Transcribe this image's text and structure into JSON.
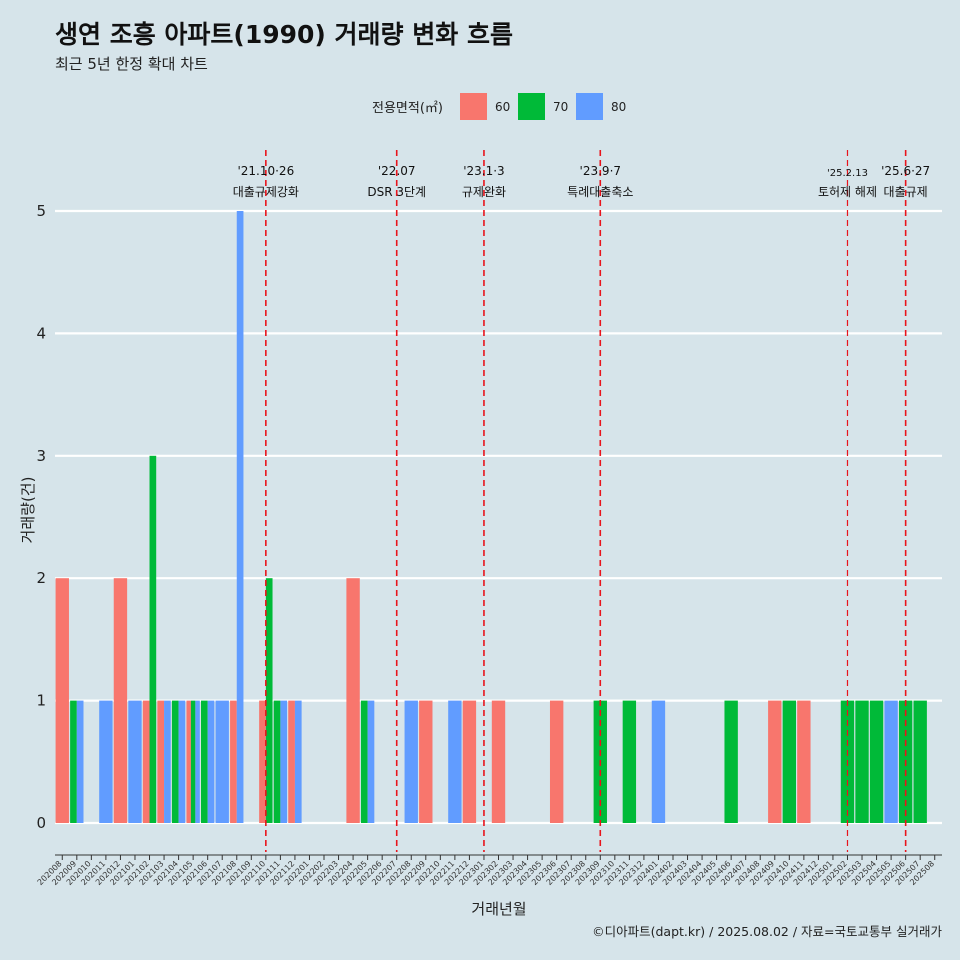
{
  "chart_data": {
    "type": "bar",
    "title": "생연 조흥 아파트(1990) 거래량 변화 흐름",
    "subtitle": "최근 5년 한정 확대 차트",
    "xlabel": "거래년월",
    "ylabel": "거래량(건)",
    "ylim": [
      0,
      5
    ],
    "yticks": [
      0,
      1,
      2,
      3,
      4,
      5
    ],
    "caption": "©디아파트(dapt.kr) / 2025.08.02 / 자료=국토교통부 실거래가",
    "legend": {
      "title": "전용면적(㎡)",
      "position": "top",
      "entries": [
        {
          "name": "60",
          "color": "#f8766d"
        },
        {
          "name": "70",
          "color": "#00ba38"
        },
        {
          "name": "80",
          "color": "#619cff"
        }
      ]
    },
    "categories": [
      "202008",
      "202009",
      "202010",
      "202011",
      "202012",
      "202101",
      "202102",
      "202103",
      "202104",
      "202105",
      "202106",
      "202107",
      "202108",
      "202109",
      "202110",
      "202111",
      "202112",
      "202201",
      "202202",
      "202203",
      "202204",
      "202205",
      "202206",
      "202207",
      "202208",
      "202209",
      "202210",
      "202211",
      "202212",
      "202301",
      "202302",
      "202303",
      "202304",
      "202305",
      "202306",
      "202307",
      "202308",
      "202309",
      "202310",
      "202311",
      "202312",
      "202401",
      "202402",
      "202403",
      "202404",
      "202405",
      "202406",
      "202407",
      "202408",
      "202409",
      "202410",
      "202411",
      "202412",
      "202501",
      "202502",
      "202503",
      "202504",
      "202505",
      "202506",
      "202507",
      "202508"
    ],
    "series": [
      {
        "name": "60",
        "values": [
          2,
          0,
          0,
          0,
          2,
          0,
          1,
          1,
          0,
          1,
          0,
          0,
          1,
          0,
          1,
          0,
          1,
          0,
          0,
          0,
          2,
          0,
          0,
          0,
          0,
          1,
          0,
          0,
          1,
          0,
          1,
          0,
          0,
          0,
          1,
          0,
          0,
          0,
          0,
          0,
          0,
          0,
          0,
          0,
          0,
          0,
          0,
          0,
          0,
          1,
          0,
          1,
          0,
          0,
          0,
          0,
          0,
          0,
          0,
          0,
          0
        ]
      },
      {
        "name": "70",
        "values": [
          0,
          1,
          0,
          0,
          0,
          0,
          3,
          0,
          1,
          1,
          1,
          0,
          0,
          0,
          2,
          1,
          0,
          0,
          0,
          0,
          0,
          1,
          0,
          0,
          0,
          0,
          0,
          0,
          0,
          0,
          0,
          0,
          0,
          0,
          0,
          0,
          0,
          1,
          0,
          1,
          0,
          0,
          0,
          0,
          0,
          0,
          1,
          0,
          0,
          0,
          1,
          0,
          0,
          0,
          1,
          1,
          1,
          0,
          1,
          1,
          0
        ]
      },
      {
        "name": "80",
        "values": [
          0,
          1,
          0,
          1,
          0,
          1,
          0,
          1,
          1,
          1,
          1,
          1,
          5,
          0,
          0,
          1,
          1,
          0,
          0,
          0,
          0,
          1,
          0,
          0,
          1,
          0,
          0,
          1,
          0,
          0,
          0,
          0,
          0,
          0,
          0,
          0,
          0,
          0,
          0,
          0,
          0,
          1,
          0,
          0,
          0,
          0,
          0,
          0,
          0,
          0,
          0,
          0,
          0,
          0,
          0,
          0,
          0,
          1,
          0,
          0,
          0
        ]
      }
    ],
    "events": [
      {
        "date": "'21.10·26",
        "label": "대출규제강화",
        "x": "202110"
      },
      {
        "date": "'22.07",
        "label": "DSR 3단계",
        "x": "202207"
      },
      {
        "date": "'23.1·3",
        "label": "규제완화",
        "x": "202301"
      },
      {
        "date": "'23.9·7",
        "label": "특례대출축소",
        "x": "202309"
      },
      {
        "date": "'25.2.13",
        "label": "토허제 해제",
        "x": "202502"
      },
      {
        "date": "'25.6·27",
        "label": "대출규제",
        "x": "202506"
      }
    ],
    "grid": true
  }
}
